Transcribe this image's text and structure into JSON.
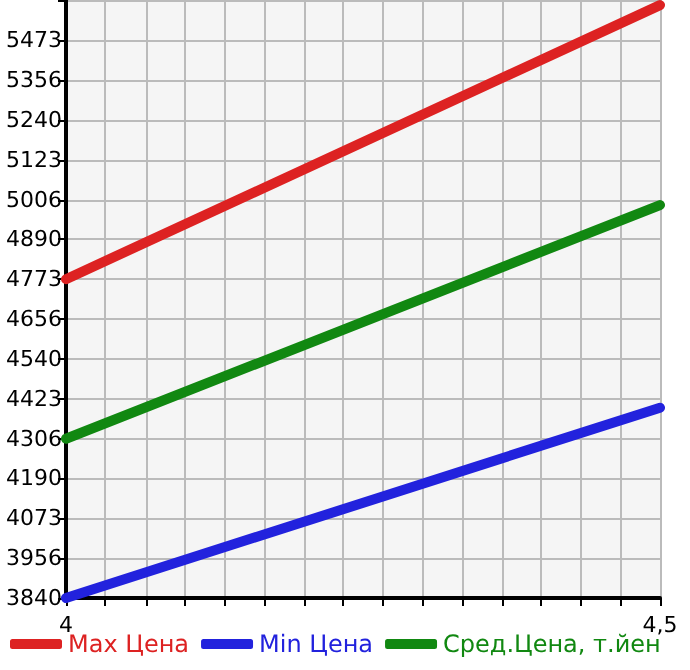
{
  "chart_data": {
    "type": "line",
    "x": [
      4,
      4.5
    ],
    "series": [
      {
        "name": "Max Цена",
        "color": "#dd2222",
        "values": [
          4773,
          5575
        ]
      },
      {
        "name": "Min Цена",
        "color": "#2222dd",
        "values": [
          3840,
          4397
        ]
      },
      {
        "name": "Сред.Цена, т.йен",
        "color": "#118811",
        "values": [
          4306,
          4990
        ]
      }
    ],
    "xlim": [
      4,
      4.5
    ],
    "xticks": [
      {
        "value": 4,
        "label": "4"
      },
      {
        "value": 4.033,
        "label": null
      },
      {
        "value": 4.067,
        "label": null
      },
      {
        "value": 4.1,
        "label": null
      },
      {
        "value": 4.133,
        "label": null
      },
      {
        "value": 4.167,
        "label": null
      },
      {
        "value": 4.2,
        "label": null
      },
      {
        "value": 4.233,
        "label": null
      },
      {
        "value": 4.267,
        "label": null
      },
      {
        "value": 4.3,
        "label": null
      },
      {
        "value": 4.333,
        "label": null
      },
      {
        "value": 4.367,
        "label": null
      },
      {
        "value": 4.4,
        "label": null
      },
      {
        "value": 4.433,
        "label": null
      },
      {
        "value": 4.467,
        "label": null
      },
      {
        "value": 4.5,
        "label": "4,5"
      }
    ],
    "ylim": [
      3840,
      5590
    ],
    "yticks": [
      3840,
      3956,
      4073,
      4190,
      4306,
      4423,
      4540,
      4656,
      4773,
      4890,
      5006,
      5123,
      5240,
      5356,
      5473,
      {
        "value": 5590,
        "label": null
      }
    ],
    "grid": true,
    "legend": "bottom",
    "marker": "none",
    "line_style": "solid"
  }
}
